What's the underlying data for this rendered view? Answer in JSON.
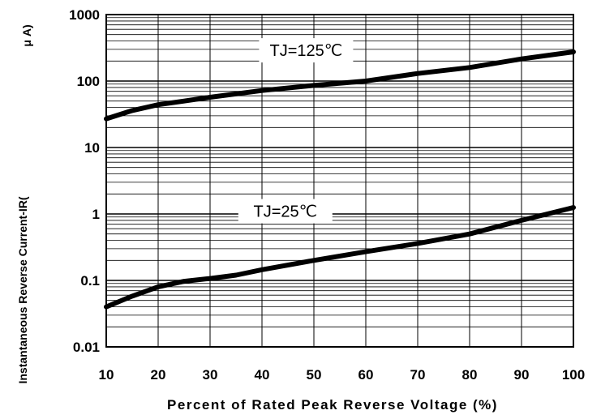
{
  "chart_data": {
    "type": "line",
    "title": "",
    "xlabel": "Percent of Rated Peak Reverse Voltage (%)",
    "ylabel_main": "Instantaneous Reverse Current-IR(",
    "ylabel_unit": "μ A)",
    "x_ticks": [
      "10",
      "20",
      "30",
      "40",
      "50",
      "60",
      "70",
      "80",
      "90",
      "100"
    ],
    "y_ticks": [
      "0.01",
      "0.1",
      "1",
      "10",
      "100",
      "1000"
    ],
    "xlim": [
      10,
      100
    ],
    "ylim": [
      0.01,
      1000
    ],
    "yscale": "log",
    "grid": true,
    "series": [
      {
        "name": "TJ=125℃",
        "x": [
          10,
          15,
          20,
          25,
          30,
          40,
          50,
          60,
          70,
          80,
          90,
          100
        ],
        "y": [
          27,
          36,
          44,
          50,
          57,
          72,
          86,
          100,
          130,
          160,
          215,
          275
        ]
      },
      {
        "name": "TJ=25℃",
        "x": [
          10,
          15,
          20,
          25,
          30,
          35,
          40,
          50,
          60,
          70,
          80,
          90,
          100
        ],
        "y": [
          0.04,
          0.058,
          0.08,
          0.097,
          0.107,
          0.12,
          0.145,
          0.2,
          0.27,
          0.36,
          0.5,
          0.8,
          1.25
        ]
      }
    ]
  }
}
